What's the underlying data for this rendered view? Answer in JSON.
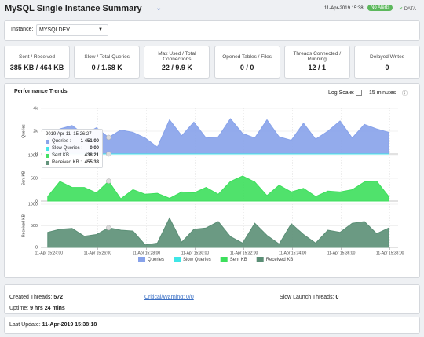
{
  "header": {
    "title": "MySQL Single Instance Summary",
    "timestamp": "11-Apr-2019 15:38",
    "badge": "No Alerts",
    "data": "DATA"
  },
  "instance": {
    "label": "Instance:",
    "value": "MYSQLDEV"
  },
  "kpis": [
    {
      "label": "Sent / Received",
      "value": "385 KB / 464 KB"
    },
    {
      "label": "Slow / Total Queries",
      "value": "0 / 1.68 K"
    },
    {
      "label": "Max Used / Total Connections",
      "value": "22 / 9.9 K"
    },
    {
      "label": "Opened Tables / Files",
      "value": "0 / 0"
    },
    {
      "label": "Threads Connected / Running",
      "value": "12 / 1"
    },
    {
      "label": "Delayed Writes",
      "value": "0"
    }
  ],
  "trends": {
    "title": "Performance Trends",
    "log_scale": "Log Scale:",
    "range": "15 minutes"
  },
  "tooltip": {
    "title": "2019 Apr 11, 15:26:27",
    "items": [
      {
        "name": "Queries :",
        "value": "1 451.00"
      },
      {
        "name": "Slow Queries :",
        "value": "0.00"
      },
      {
        "name": "Sent KB :",
        "value": "438.21"
      },
      {
        "name": "Received KB :",
        "value": "455.38"
      }
    ]
  },
  "chart_data": {
    "type": "area",
    "x": [
      "15:23:57",
      "15:24:27",
      "15:24:57",
      "15:25:27",
      "15:25:57",
      "15:26:27",
      "15:26:57",
      "15:27:27",
      "15:27:57",
      "15:28:27",
      "15:28:57",
      "15:29:27",
      "15:29:57",
      "15:30:27",
      "15:30:57",
      "15:31:27",
      "15:31:57",
      "15:32:27",
      "15:32:57",
      "15:33:27",
      "15:33:57",
      "15:34:27",
      "15:34:57",
      "15:35:27",
      "15:35:57",
      "15:36:27",
      "15:36:57",
      "15:37:27",
      "15:37:57"
    ],
    "xlim": [
      "15:23:40",
      "15:38:20"
    ],
    "xticks": [
      {
        "value": "15:24:00",
        "label": "11-Apr 15:24:00"
      },
      {
        "value": "15:26:00",
        "label": "11-Apr 15:26:00"
      },
      {
        "value": "15:28:00",
        "label": "11-Apr 15:28:00"
      },
      {
        "value": "15:30:00",
        "label": "11-Apr 15:30:00"
      },
      {
        "value": "15:32:00",
        "label": "11-Apr 15:32:00"
      },
      {
        "value": "15:34:00",
        "label": "11-Apr 15:34:00"
      },
      {
        "value": "15:36:00",
        "label": "11-Apr 15:36:00"
      },
      {
        "value": "15:38:00",
        "label": "11-Apr 15:38:00"
      }
    ],
    "grid": true,
    "panels": [
      {
        "ylabel": "Queries",
        "ylim": [
          0,
          4000
        ],
        "yticks": [
          0,
          {
            "value": 2000,
            "label": "2k"
          },
          {
            "value": 4000,
            "label": "4k"
          }
        ],
        "series": [
          {
            "name": "Queries",
            "color": "#87a2ea",
            "values": [
              1500,
              2200,
              2500,
              1700,
              2300,
              1451,
              2100,
              1900,
              1400,
              600,
              3000,
              1600,
              2800,
              1400,
              1500,
              3100,
              1800,
              1400,
              3000,
              1500,
              1200,
              2700,
              1300,
              2000,
              2900,
              1400,
              2600,
              2200,
              1900
            ]
          },
          {
            "name": "Slow Queries",
            "color": "#3fe6e6",
            "values": [
              0,
              0,
              0,
              0,
              0,
              0,
              0,
              0,
              0,
              0,
              0,
              0,
              0,
              0,
              0,
              0,
              0,
              0,
              0,
              0,
              0,
              0,
              0,
              0,
              0,
              0,
              0,
              0,
              0
            ]
          }
        ]
      },
      {
        "ylabel": "Sent KB",
        "ylim": [
          0,
          1000
        ],
        "yticks": [
          0,
          500,
          1000
        ],
        "series": [
          {
            "name": "Sent KB",
            "color": "#3ddf5c",
            "values": [
              100,
              430,
              300,
              300,
              180,
              438.21,
              50,
              250,
              150,
              170,
              60,
              200,
              180,
              300,
              150,
              430,
              550,
              420,
              120,
              350,
              200,
              280,
              100,
              220,
              200,
              250,
              420,
              440,
              100
            ]
          }
        ]
      },
      {
        "ylabel": "Received KB",
        "ylim": [
          0,
          1000
        ],
        "yticks": [
          0,
          500,
          1000
        ],
        "series": [
          {
            "name": "Received KB",
            "color": "#5b8f76",
            "values": [
              350,
              420,
              440,
              260,
              300,
              455.38,
              400,
              380,
              60,
              100,
              680,
              120,
              420,
              450,
              600,
              250,
              100,
              560,
              280,
              80,
              550,
              300,
              100,
              400,
              350,
              560,
              600,
              320,
              450
            ]
          }
        ]
      }
    ]
  },
  "footer": {
    "created_label": "Created Threads:",
    "created_value": "572",
    "critical": "Critical/Warning: 0/0",
    "slow_label": "Slow Launch Threads:",
    "slow_value": "0",
    "uptime_label": "Uptime:",
    "uptime_value": "9 hrs 24 mins",
    "update_label": "Last Update:",
    "update_value": "11-Apr-2019 15:38:18"
  }
}
